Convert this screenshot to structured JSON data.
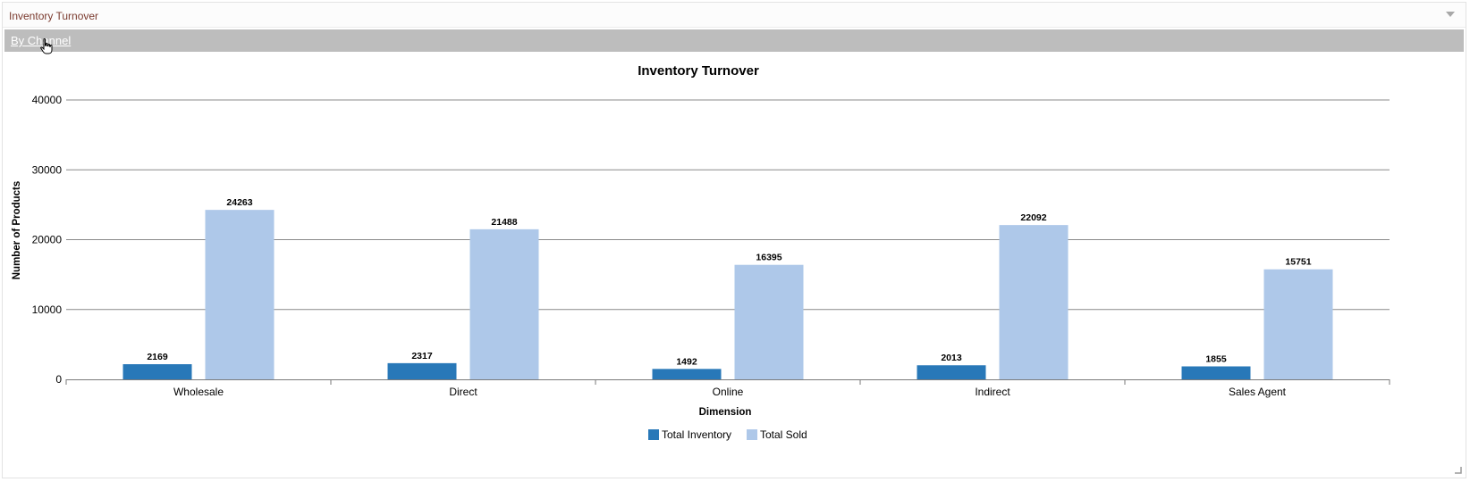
{
  "panel": {
    "title": "Inventory Turnover",
    "breadcrumb": "By Channel"
  },
  "colors": {
    "total_inventory": "#2878b8",
    "total_sold": "#aec8e9"
  },
  "icons": [
    "chevron-down-icon",
    "hand-pointer-icon",
    "resize-grip-icon"
  ],
  "chart_data": {
    "type": "bar",
    "title": "Inventory Turnover",
    "xlabel": "Dimension",
    "ylabel": "Number of Products",
    "ylim": [
      0,
      40000
    ],
    "yticks": [
      0,
      10000,
      20000,
      30000,
      40000
    ],
    "grid": true,
    "legend_position": "bottom",
    "categories": [
      "Wholesale",
      "Direct",
      "Online",
      "Indirect",
      "Sales Agent"
    ],
    "series": [
      {
        "name": "Total Inventory",
        "color": "#2878b8",
        "values": [
          2169,
          2317,
          1492,
          2013,
          1855
        ]
      },
      {
        "name": "Total Sold",
        "color": "#aec8e9",
        "values": [
          24263,
          21488,
          16395,
          22092,
          15751
        ]
      }
    ]
  }
}
